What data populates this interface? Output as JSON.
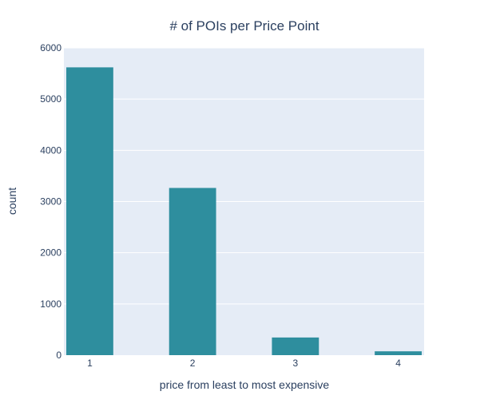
{
  "chart_data": {
    "type": "bar",
    "title": "# of POIs per Price Point",
    "xlabel": "price from least to most expensive",
    "ylabel": "count",
    "categories": [
      "1",
      "2",
      "3",
      "4"
    ],
    "values": [
      5620,
      3265,
      345,
      75
    ],
    "ylim": [
      0,
      6000
    ],
    "yticks": [
      0,
      1000,
      2000,
      3000,
      4000,
      5000,
      6000
    ],
    "grid": true,
    "legend": "none",
    "colors": {
      "bar": "#2e8e9e",
      "plot_background": "#e5ecf6",
      "gridline": "#ffffff",
      "text": "#2a3f5f"
    }
  }
}
